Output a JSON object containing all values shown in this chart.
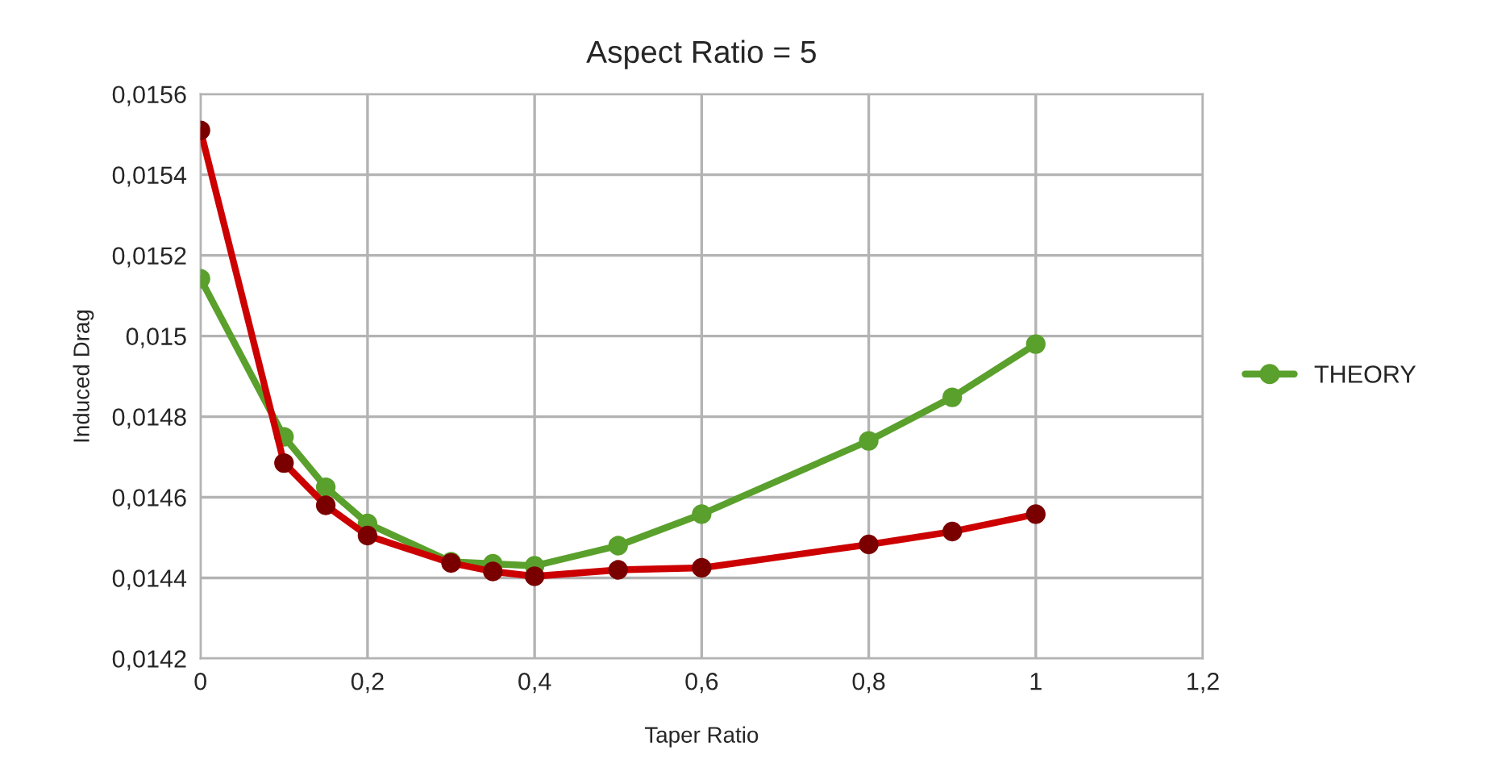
{
  "chart_data": {
    "type": "line",
    "title": "Aspect Ratio = 5",
    "xlabel": "Taper Ratio",
    "ylabel": "Induced Drag",
    "series": [
      {
        "color": "#cc0000",
        "x": [
          0,
          0.1,
          0.15,
          0.2,
          0.3,
          0.35,
          0.4,
          0.5,
          0.6,
          0.8,
          0.9,
          1.0
        ],
        "values": [
          0.01551,
          0.014685,
          0.01458,
          0.014505,
          0.014437,
          0.014416,
          0.014404,
          0.01442,
          0.014425,
          0.014483,
          0.014515,
          0.014558
        ]
      },
      {
        "name": "THEORY",
        "color": "#5aa02c",
        "x": [
          0,
          0.1,
          0.15,
          0.2,
          0.3,
          0.35,
          0.4,
          0.5,
          0.6,
          0.8,
          0.9,
          1.0
        ],
        "values": [
          0.015142,
          0.01475,
          0.014625,
          0.014535,
          0.01444,
          0.014435,
          0.01443,
          0.01448,
          0.014558,
          0.01474,
          0.014848,
          0.01498
        ]
      }
    ],
    "xlim": [
      0,
      1.2
    ],
    "xticks": [
      0,
      {
        "value": 0.2,
        "label": "0,2"
      },
      {
        "value": 0.4,
        "label": "0,4"
      },
      {
        "value": 0.6,
        "label": "0,6"
      },
      {
        "value": 0.8,
        "label": "0,8"
      },
      1,
      {
        "value": 1.2,
        "label": "1,2"
      }
    ],
    "ylim": [
      0.0142,
      0.0156
    ],
    "yticks": [
      {
        "value": 0.0142,
        "label": "0,0142"
      },
      {
        "value": 0.0144,
        "label": "0,0144"
      },
      {
        "value": 0.0146,
        "label": "0,0146"
      },
      {
        "value": 0.0148,
        "label": "0,0148"
      },
      {
        "value": 0.015,
        "label": "0,015"
      },
      {
        "value": 0.0152,
        "label": "0,0152"
      },
      {
        "value": 0.0154,
        "label": "0,0154"
      },
      {
        "value": 0.0156,
        "label": "0,0156"
      }
    ],
    "grid": true,
    "legend": "right",
    "marker": "circle",
    "line_style": "solid"
  }
}
